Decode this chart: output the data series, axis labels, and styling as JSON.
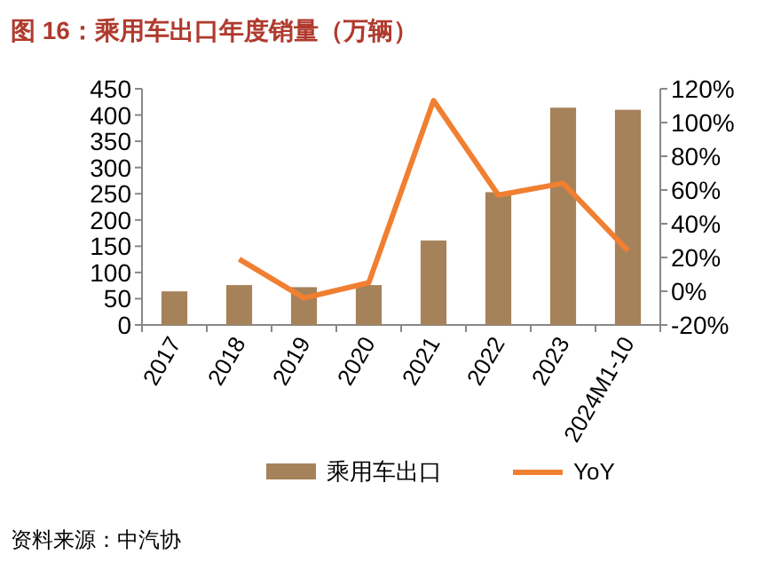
{
  "chart_data": {
    "type": "bar",
    "title": "图 16：乘用车出口年度销量（万辆）",
    "categories": [
      "2017",
      "2018",
      "2019",
      "2020",
      "2021",
      "2022",
      "2023",
      "2024M1-10"
    ],
    "series": [
      {
        "name": "乘用车出口",
        "color": "#a6825a",
        "values": [
          64,
          76,
          72,
          76,
          161,
          253,
          414,
          410
        ]
      },
      {
        "name": "YoY",
        "type": "line",
        "color": "#f07f32",
        "axis": "y2",
        "values": [
          null,
          19,
          -4,
          5,
          113,
          57,
          64,
          24
        ]
      }
    ],
    "ylim": [
      0,
      450
    ],
    "yticks": [
      0,
      50,
      100,
      150,
      200,
      250,
      300,
      350,
      400,
      450
    ],
    "y2lim": [
      -20,
      120
    ],
    "y2ticks": [
      {
        "value": -20,
        "label": "-20%"
      },
      {
        "value": 0,
        "label": "0%"
      },
      {
        "value": 20,
        "label": "20%"
      },
      {
        "value": 40,
        "label": "40%"
      },
      {
        "value": 60,
        "label": "60%"
      },
      {
        "value": 80,
        "label": "80%"
      },
      {
        "value": 100,
        "label": "100%"
      },
      {
        "value": 120,
        "label": "120%"
      }
    ],
    "legend": "bottom",
    "annotations": [
      "资料来源：中汽协"
    ]
  }
}
